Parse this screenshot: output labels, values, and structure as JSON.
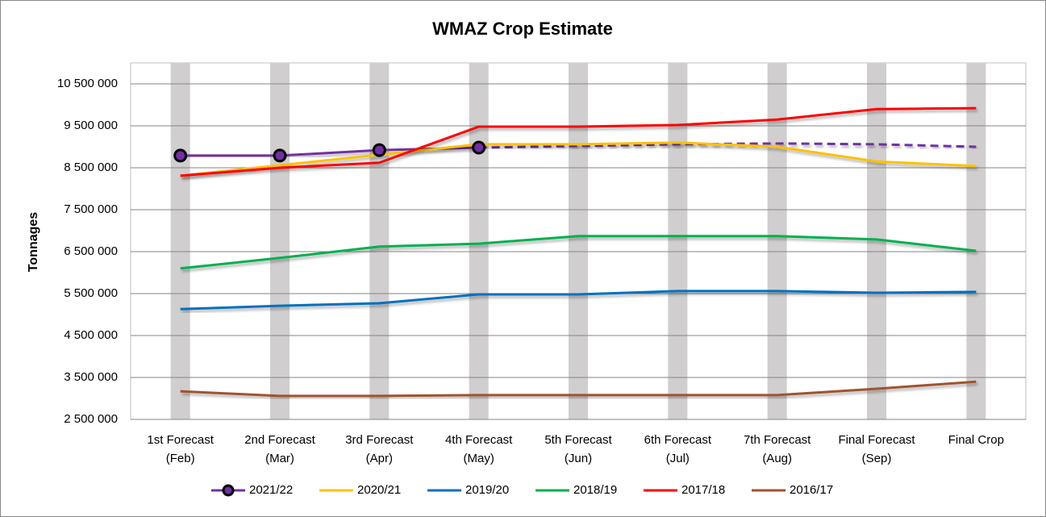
{
  "chart_data": {
    "type": "line",
    "title": "WMAZ Crop Estimate",
    "y_label": "Tonnages",
    "categories": [
      [
        "1st Forecast",
        "(Feb)"
      ],
      [
        "2nd Forecast",
        "(Mar)"
      ],
      [
        "3rd Forecast",
        "(Apr)"
      ],
      [
        "4th Forecast",
        "(May)"
      ],
      [
        "5th Forecast",
        "(Jun)"
      ],
      [
        "6th Forecast",
        "(Jul)"
      ],
      [
        "7th Forecast",
        "(Aug)"
      ],
      [
        "Final Forecast",
        "(Sep)"
      ],
      [
        "Final Crop"
      ]
    ],
    "ylim": [
      2500000,
      11000000
    ],
    "yticks": [
      {
        "value": 2500000,
        "label": "2 500 000"
      },
      {
        "value": 3500000,
        "label": "3 500 000"
      },
      {
        "value": 4500000,
        "label": "4 500 000"
      },
      {
        "value": 5500000,
        "label": "5 500 000"
      },
      {
        "value": 6500000,
        "label": "6 500 000"
      },
      {
        "value": 7500000,
        "label": "7 500 000"
      },
      {
        "value": 8500000,
        "label": "8 500 000"
      },
      {
        "value": 9500000,
        "label": "9 500 000"
      },
      {
        "value": 10500000,
        "label": "10 500 000"
      }
    ],
    "grid": true,
    "category_band_color": "#d0cece",
    "legend": "bottom",
    "series": [
      {
        "name": "2021/22",
        "color": "#7030a0",
        "markers": true,
        "values": [
          8790000,
          8790000,
          8920000,
          8980000,
          null,
          null,
          null,
          null,
          null
        ],
        "dashed_values": [
          null,
          null,
          null,
          8980000,
          9020000,
          9060000,
          9080000,
          9060000,
          9000000
        ]
      },
      {
        "name": "2020/21",
        "color": "#ffc000",
        "values": [
          8310000,
          8560000,
          8810000,
          9060000,
          9060000,
          9100000,
          9000000,
          8650000,
          8540000
        ]
      },
      {
        "name": "2019/20",
        "color": "#0070c0",
        "values": [
          5130000,
          5210000,
          5270000,
          5480000,
          5480000,
          5560000,
          5560000,
          5520000,
          5540000
        ]
      },
      {
        "name": "2018/19",
        "color": "#00b050",
        "values": [
          6100000,
          6350000,
          6620000,
          6690000,
          6870000,
          6870000,
          6870000,
          6790000,
          6520000
        ]
      },
      {
        "name": "2017/18",
        "color": "#ff0000",
        "values": [
          8310000,
          8500000,
          8620000,
          9480000,
          9480000,
          9520000,
          9650000,
          9900000,
          9920000
        ]
      },
      {
        "name": "2016/17",
        "color": "#a0522d",
        "values": [
          3170000,
          3060000,
          3060000,
          3080000,
          3080000,
          3080000,
          3080000,
          3230000,
          3400000
        ]
      }
    ]
  }
}
